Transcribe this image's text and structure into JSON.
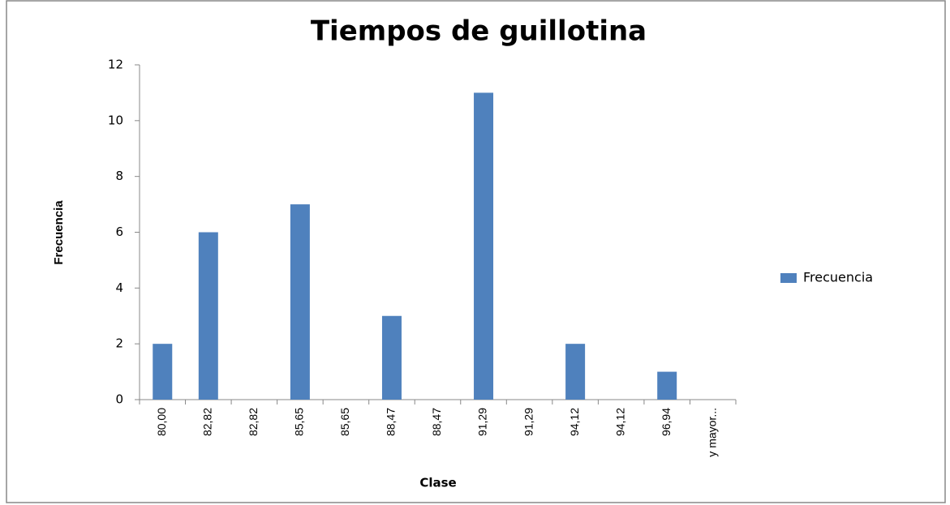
{
  "chart_data": {
    "type": "bar",
    "title": "Tiempos de guillotina",
    "x_label": "Clase",
    "y_label": "Frecuencia",
    "categories": [
      "80,00",
      "82,82",
      "82,82",
      "85,65",
      "85,65",
      "88,47",
      "88,47",
      "91,29",
      "91,29",
      "94,12",
      "94,12",
      "96,94",
      "y mayor..."
    ],
    "series": [
      {
        "name": "Frecuencia",
        "color": "#4f81bd",
        "values": [
          2,
          6,
          0,
          7,
          0,
          3,
          0,
          11,
          0,
          2,
          0,
          1,
          0
        ]
      }
    ],
    "ylim": [
      0,
      12
    ],
    "yticks": [
      0,
      2,
      4,
      6,
      8,
      10,
      12
    ],
    "grid": false,
    "legend": "right"
  }
}
